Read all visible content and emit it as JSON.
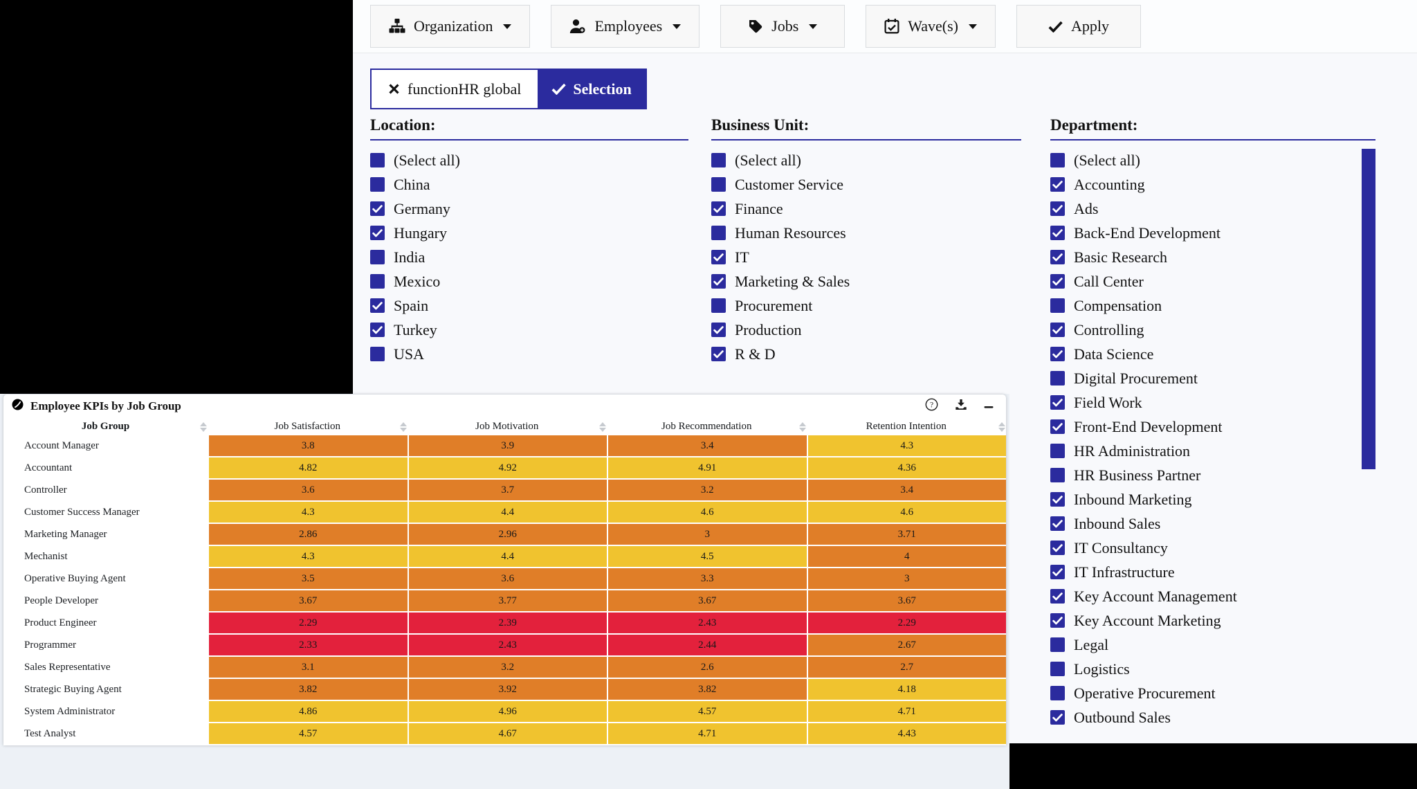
{
  "colors": {
    "accent_navy": "#2b2b9e",
    "page_bg": "#f8f9fc",
    "table_region_bg": "#edf1f6",
    "cell_red": "#e3213c",
    "cell_orange": "#e07e28",
    "cell_yellow": "#f0c32f"
  },
  "toolbar": {
    "buttons": [
      {
        "label": "Organization",
        "icon": "sitemap-icon",
        "caret": true
      },
      {
        "label": "Employees",
        "icon": "user-icon",
        "caret": true
      },
      {
        "label": "Jobs",
        "icon": "tag-icon",
        "caret": true
      },
      {
        "label": "Wave(s)",
        "icon": "calendar-check-icon",
        "caret": true
      },
      {
        "label": "Apply",
        "icon": "check-icon",
        "caret": false
      }
    ]
  },
  "selection_tag": {
    "remove_icon": "x-icon",
    "filter_label": "functionHR global",
    "apply_icon": "check-icon",
    "apply_label": "Selection"
  },
  "filters": {
    "groups": [
      {
        "id": "location",
        "title": "Location:",
        "has_scrollbar": false,
        "items": [
          {
            "label": "(Select all)",
            "checked": false
          },
          {
            "label": "China",
            "checked": false
          },
          {
            "label": "Germany",
            "checked": true
          },
          {
            "label": "Hungary",
            "checked": true
          },
          {
            "label": "India",
            "checked": false
          },
          {
            "label": "Mexico",
            "checked": false
          },
          {
            "label": "Spain",
            "checked": true
          },
          {
            "label": "Turkey",
            "checked": true
          },
          {
            "label": "USA",
            "checked": false
          }
        ]
      },
      {
        "id": "business-unit",
        "title": "Business Unit:",
        "has_scrollbar": false,
        "items": [
          {
            "label": "(Select all)",
            "checked": false
          },
          {
            "label": "Customer Service",
            "checked": false
          },
          {
            "label": "Finance",
            "checked": true
          },
          {
            "label": "Human Resources",
            "checked": false
          },
          {
            "label": "IT",
            "checked": true
          },
          {
            "label": "Marketing & Sales",
            "checked": true
          },
          {
            "label": "Procurement",
            "checked": false
          },
          {
            "label": "Production",
            "checked": true
          },
          {
            "label": "R & D",
            "checked": true
          }
        ]
      },
      {
        "id": "department",
        "title": "Department:",
        "has_scrollbar": true,
        "items": [
          {
            "label": "(Select all)",
            "checked": false
          },
          {
            "label": "Accounting",
            "checked": true
          },
          {
            "label": "Ads",
            "checked": true
          },
          {
            "label": "Back-End Development",
            "checked": true
          },
          {
            "label": "Basic Research",
            "checked": true
          },
          {
            "label": "Call Center",
            "checked": true
          },
          {
            "label": "Compensation",
            "checked": false
          },
          {
            "label": "Controlling",
            "checked": true
          },
          {
            "label": "Data Science",
            "checked": true
          },
          {
            "label": "Digital Procurement",
            "checked": false
          },
          {
            "label": "Field Work",
            "checked": true
          },
          {
            "label": "Front-End Development",
            "checked": true
          },
          {
            "label": "HR Administration",
            "checked": false
          },
          {
            "label": "HR Business Partner",
            "checked": false
          },
          {
            "label": "Inbound Marketing",
            "checked": true
          },
          {
            "label": "Inbound Sales",
            "checked": true
          },
          {
            "label": "IT Consultancy",
            "checked": true
          },
          {
            "label": "IT Infrastructure",
            "checked": true
          },
          {
            "label": "Key Account Management",
            "checked": true
          },
          {
            "label": "Key Account Marketing",
            "checked": true
          },
          {
            "label": "Legal",
            "checked": false
          },
          {
            "label": "Logistics",
            "checked": false
          },
          {
            "label": "Operative Procurement",
            "checked": false
          },
          {
            "label": "Outbound Sales",
            "checked": true
          }
        ]
      }
    ]
  },
  "widget": {
    "title": "Employee KPIs by Job Group",
    "logo_icon": "logo-icon",
    "actions": [
      {
        "name": "help",
        "icon": "help-icon"
      },
      {
        "name": "download",
        "icon": "download-icon"
      },
      {
        "name": "minimize",
        "icon": "minus-icon"
      }
    ]
  },
  "chart_data": {
    "type": "heatmap",
    "columns": [
      "Job Group",
      "Job Satisfaction",
      "Job Motivation",
      "Job Recommendation",
      "Retention Intention"
    ],
    "rows": [
      {
        "job_group": "Account Manager",
        "values": [
          "3.8",
          "3.9",
          "3.4",
          "4.3"
        ]
      },
      {
        "job_group": "Accountant",
        "values": [
          "4.82",
          "4.92",
          "4.91",
          "4.36"
        ]
      },
      {
        "job_group": "Controller",
        "values": [
          "3.6",
          "3.7",
          "3.2",
          "3.4"
        ]
      },
      {
        "job_group": "Customer Success Manager",
        "values": [
          "4.3",
          "4.4",
          "4.6",
          "4.6"
        ]
      },
      {
        "job_group": "Marketing Manager",
        "values": [
          "2.86",
          "2.96",
          "3",
          "3.71"
        ]
      },
      {
        "job_group": "Mechanist",
        "values": [
          "4.3",
          "4.4",
          "4.5",
          "4"
        ]
      },
      {
        "job_group": "Operative Buying Agent",
        "values": [
          "3.5",
          "3.6",
          "3.3",
          "3"
        ]
      },
      {
        "job_group": "People Developer",
        "values": [
          "3.67",
          "3.77",
          "3.67",
          "3.67"
        ]
      },
      {
        "job_group": "Product Engineer",
        "values": [
          "2.29",
          "2.39",
          "2.43",
          "2.29"
        ]
      },
      {
        "job_group": "Programmer",
        "values": [
          "2.33",
          "2.43",
          "2.44",
          "2.67"
        ]
      },
      {
        "job_group": "Sales Representative",
        "values": [
          "3.1",
          "3.2",
          "2.6",
          "2.7"
        ]
      },
      {
        "job_group": "Strategic Buying Agent",
        "values": [
          "3.82",
          "3.92",
          "3.82",
          "4.18"
        ]
      },
      {
        "job_group": "System Administrator",
        "values": [
          "4.86",
          "4.96",
          "4.57",
          "4.71"
        ]
      },
      {
        "job_group": "Test Analyst",
        "values": [
          "4.57",
          "4.67",
          "4.71",
          "4.43"
        ]
      }
    ],
    "color_scale": {
      "red_below": 2.5,
      "orange_upto": 4.0,
      "red": "#e3213c",
      "orange": "#e07e28",
      "yellow": "#f0c32f"
    },
    "value_range": [
      1,
      5
    ],
    "sortable_columns": true
  }
}
